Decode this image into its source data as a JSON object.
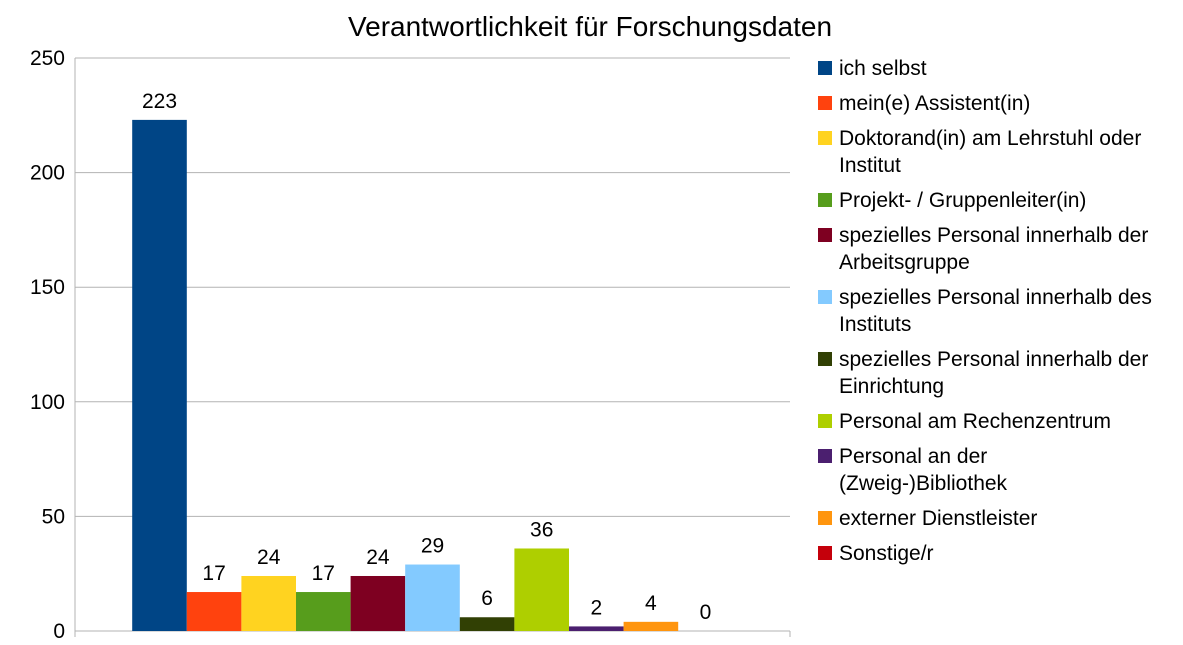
{
  "chart_data": {
    "type": "bar",
    "title": "Verantwortlichkeit für Forschungsdaten",
    "categories": [
      null
    ],
    "series": [
      {
        "name": "ich selbst",
        "color": "#004586",
        "values": [
          223
        ]
      },
      {
        "name": "mein(e) Assistent(in)",
        "color": "#ff420e",
        "values": [
          17
        ]
      },
      {
        "name": "Doktorand(in) am Lehrstuhl oder Institut",
        "color": "#ffd320",
        "values": [
          24
        ]
      },
      {
        "name": "Projekt- / Gruppenleiter(in)",
        "color": "#579d1c",
        "values": [
          17
        ]
      },
      {
        "name": "spezielles Personal innerhalb der Arbeitsgruppe",
        "color": "#7e0021",
        "values": [
          24
        ]
      },
      {
        "name": "spezielles Personal innerhalb des Instituts",
        "color": "#83caff",
        "values": [
          29
        ]
      },
      {
        "name": "spezielles Personal innerhalb der Einrichtung",
        "color": "#314004",
        "values": [
          6
        ]
      },
      {
        "name": "Personal am Rechenzentrum",
        "color": "#aecf00",
        "values": [
          36
        ]
      },
      {
        "name": "Personal an der (Zweig-)Bibliothek",
        "color": "#4b1f6f",
        "values": [
          2
        ]
      },
      {
        "name": "externer Dienstleister",
        "color": "#ff950e",
        "values": [
          4
        ]
      },
      {
        "name": "Sonstige/r",
        "color": "#c5000b",
        "values": [
          0
        ]
      }
    ],
    "ylim": [
      0,
      250
    ],
    "yticks": [
      0,
      50,
      100,
      150,
      200,
      250
    ],
    "grid": true,
    "legend": "right"
  }
}
